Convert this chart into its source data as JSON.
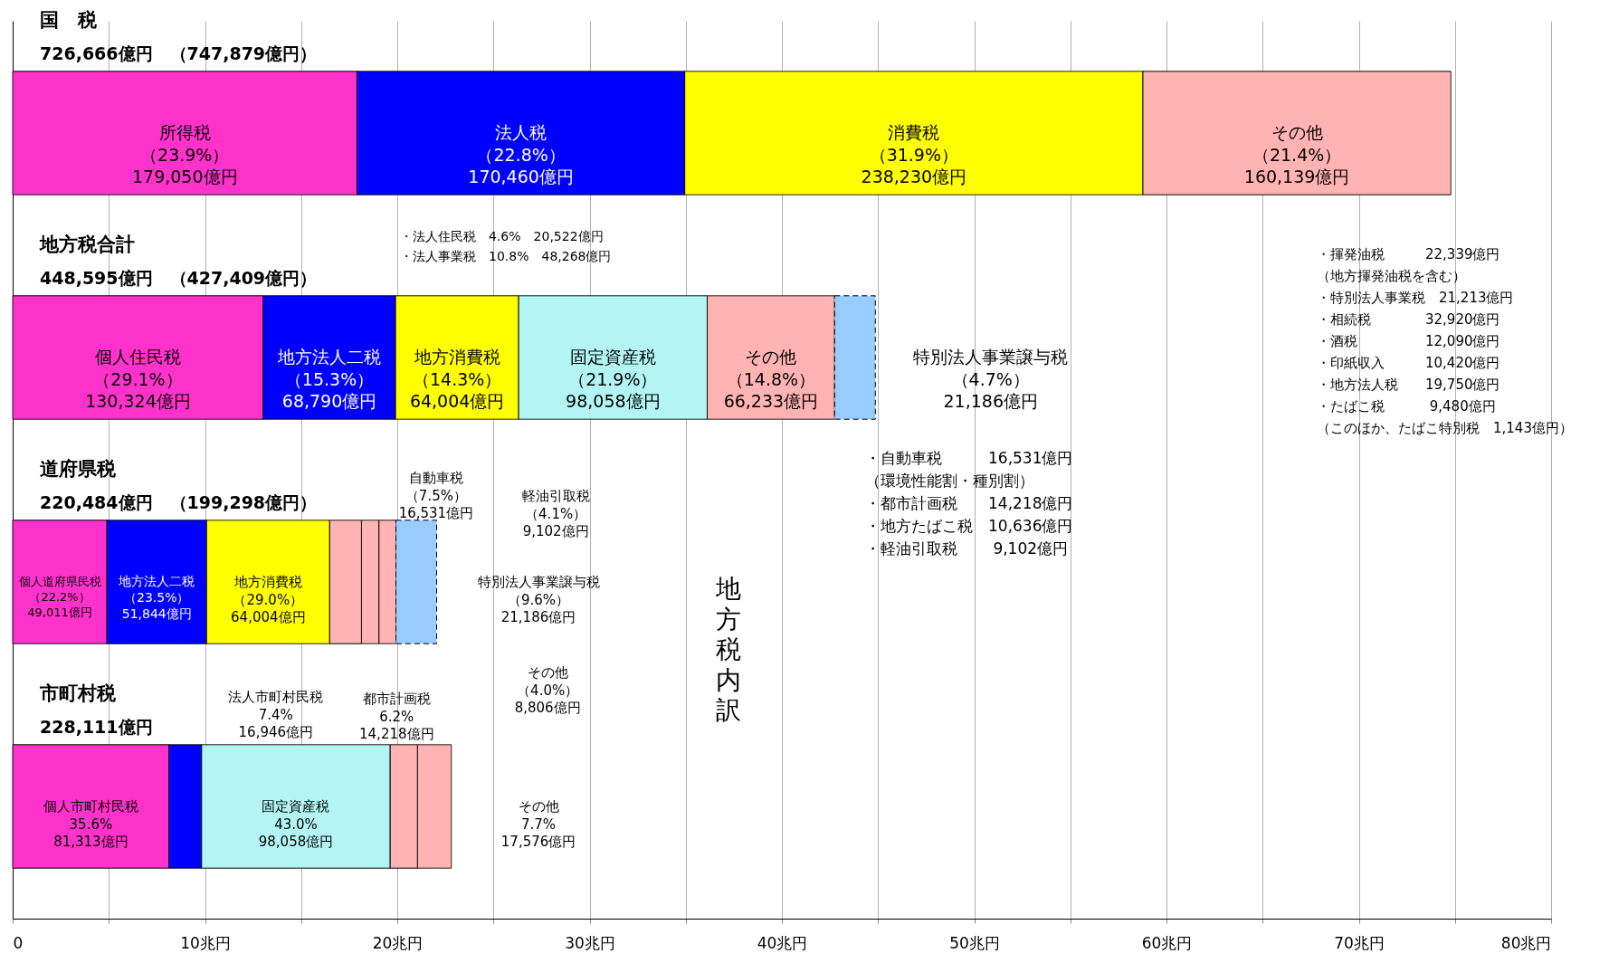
{
  "chart_data": {
    "type": "bar",
    "orientation": "horizontal",
    "stacked": true,
    "categories": [
      "国　税",
      "地方税合計",
      "道府県税",
      "市町村税"
    ],
    "xlim": [
      0,
      80
    ],
    "xticks": [
      0,
      {
        "value": 5,
        "label": null
      },
      {
        "value": 10,
        "label": "10兆円"
      },
      {
        "value": 15,
        "label": null
      },
      {
        "value": 20,
        "label": "20兆円"
      },
      {
        "value": 25,
        "label": null
      },
      {
        "value": 30,
        "label": "30兆円"
      },
      {
        "value": 35,
        "label": null
      },
      {
        "value": 40,
        "label": "40兆円"
      },
      {
        "value": 45,
        "label": null
      },
      {
        "value": 50,
        "label": "50兆円"
      },
      {
        "value": 55,
        "label": null
      },
      {
        "value": 60,
        "label": "60兆円"
      },
      {
        "value": 65,
        "label": null
      },
      {
        "value": 70,
        "label": "70兆円"
      },
      {
        "value": 75,
        "label": null
      },
      {
        "value": 80,
        "label": "80兆円"
      }
    ],
    "grid": "x",
    "tick_labels": "x",
    "series": [
      {
        "color": "#ff33cc",
        "values": [
          17.905,
          13.0324,
          4.9011,
          8.1313
        ]
      },
      {
        "color": "#0000ff",
        "values": [
          17.046,
          6.879,
          5.1844,
          1.6946
        ]
      },
      {
        "color": "#ffff00",
        "values": [
          23.823,
          6.4004,
          6.4004,
          null
        ]
      },
      {
        "color": "#b3f5f5",
        "values": [
          null,
          9.8058,
          null,
          9.8058
        ]
      },
      {
        "color": "#ffb3b3",
        "values": [
          16.0139,
          6.6233,
          1.6531,
          1.4218
        ]
      },
      {
        "color": "#ffb3b3",
        "values": [
          null,
          null,
          0.9102,
          1.7576
        ]
      },
      {
        "color": "#ffb3b3",
        "values": [
          null,
          null,
          0.8806,
          null
        ]
      },
      {
        "color": "#99ccff",
        "line_style": "dashed",
        "values": [
          null,
          2.1186,
          2.1186,
          null
        ]
      }
    ],
    "annotations": [
      "所得税（23.9%）179,050億円",
      "法人税（22.8%）170,460億円",
      "消費税（31.9%）238,230億円",
      "その他（21.4%）160,139億円",
      "個人住民税（29.1%）130,324億円",
      "地方法人二税（15.3%）68,790億円",
      "地方消費税（14.3%）64,004億円",
      "固定資産税（21.9%）98,058億円",
      "その他（14.8%）66,233億円",
      "特別法人事業譲与税（4.7%）21,186億円",
      "個人道府県民税（22.2%）49,011億円",
      "地方法人二税（23.5%）51,844億円",
      "地方消費税（29.0%）64,004億円",
      "自動車税（7.5%）16,531億円",
      "軽油引取税（4.1%）9,102億円",
      "その他（4.0%）8,806億円",
      "特別法人事業譲与税（9.6%）21,186億円",
      "個人市町村民税35.6%81,313億円",
      "法人市町村民税7.4%16,946億円",
      "固定資産税43.0%98,058億円",
      "都市計画税6.2%14,218億円",
      "その他7.7%17,576億円",
      "726,666億円　（747,879億円）",
      "448,595億円　（427,409億円）",
      "220,484億円　（199,298億円）",
      "228,111億円",
      "・法人住民税　4.6%　20,522億円",
      "・法人事業税　10.8%　48,268億円",
      "・揮発油税　　　22,339億円",
      "（地方揮発油税を含む）",
      "・特別法人事業税　21,213億円",
      "・相続税　　　　32,920億円",
      "・酒税　　　　　12,090億円",
      "・印紙収入　　　10,420億円",
      "・地方法人税　　19,750億円",
      "・たばこ税　　　 9,480億円",
      "（このほか、たばこ特別税　1,143億円）",
      "・自動車税　　　16,531億円",
      "（環境性能割・種別割）",
      "・都市計画税　　14,218億円",
      "・地方たばこ税　10,636億円",
      "・軽油引取税　　 9,102億円",
      "地方税内訳"
    ]
  }
}
